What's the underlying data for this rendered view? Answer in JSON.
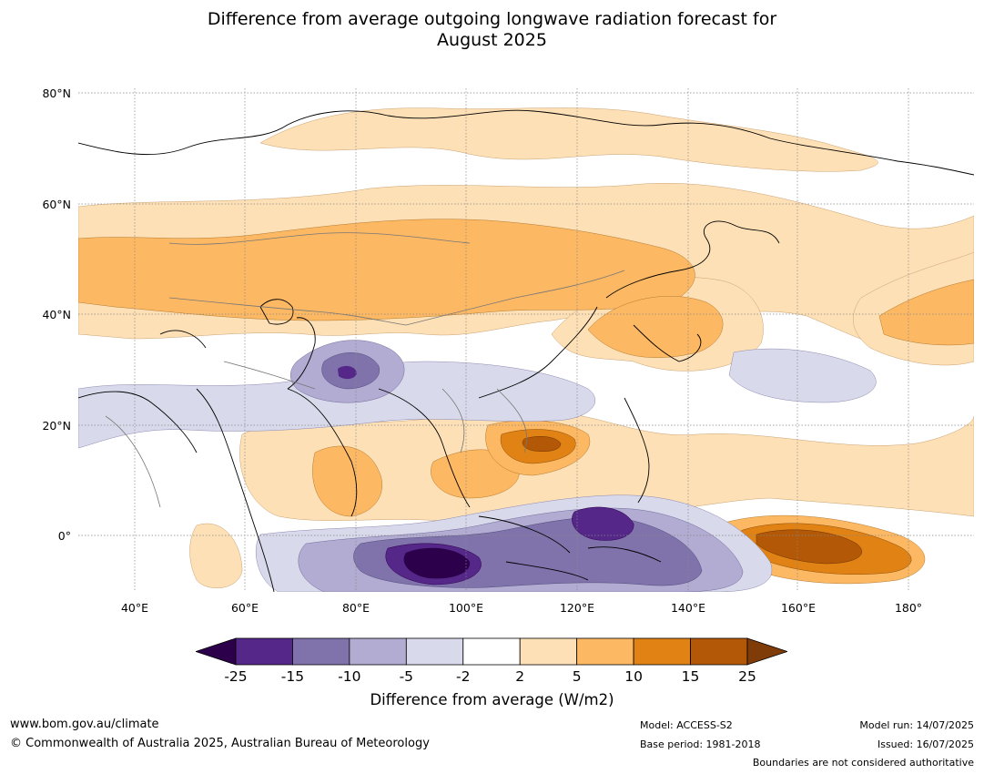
{
  "title_line1": "Difference from average outgoing longwave radiation forecast for",
  "title_line2": "August 2025",
  "lat_ticks": [
    "80°N",
    "60°N",
    "40°N",
    "20°N",
    "0°"
  ],
  "lon_ticks": [
    "40°E",
    "60°E",
    "80°E",
    "100°E",
    "120°E",
    "140°E",
    "160°E",
    "180°"
  ],
  "colorbar": {
    "title": "Difference from average (W/m2)",
    "levels": [
      "-25",
      "-15",
      "-10",
      "-5",
      "-2",
      "2",
      "5",
      "10",
      "15",
      "25"
    ],
    "colors": [
      "#2d004b",
      "#542788",
      "#8073ac",
      "#b2abd2",
      "#d8daeb",
      "#ffffff",
      "#fee0b6",
      "#fdb863",
      "#e08214",
      "#b35806",
      "#7f3b08"
    ]
  },
  "footer": {
    "url": "www.bom.gov.au/climate",
    "copyright": "© Commonwealth of Australia 2025, Australian Bureau of Meteorology",
    "model": "Model: ACCESS-S2",
    "base_period": "Base period: 1981-2018",
    "model_run": "Model run: 14/07/2025",
    "issued": "Issued: 16/07/2025",
    "disclaimer": "Boundaries are not considered authoritative"
  }
}
